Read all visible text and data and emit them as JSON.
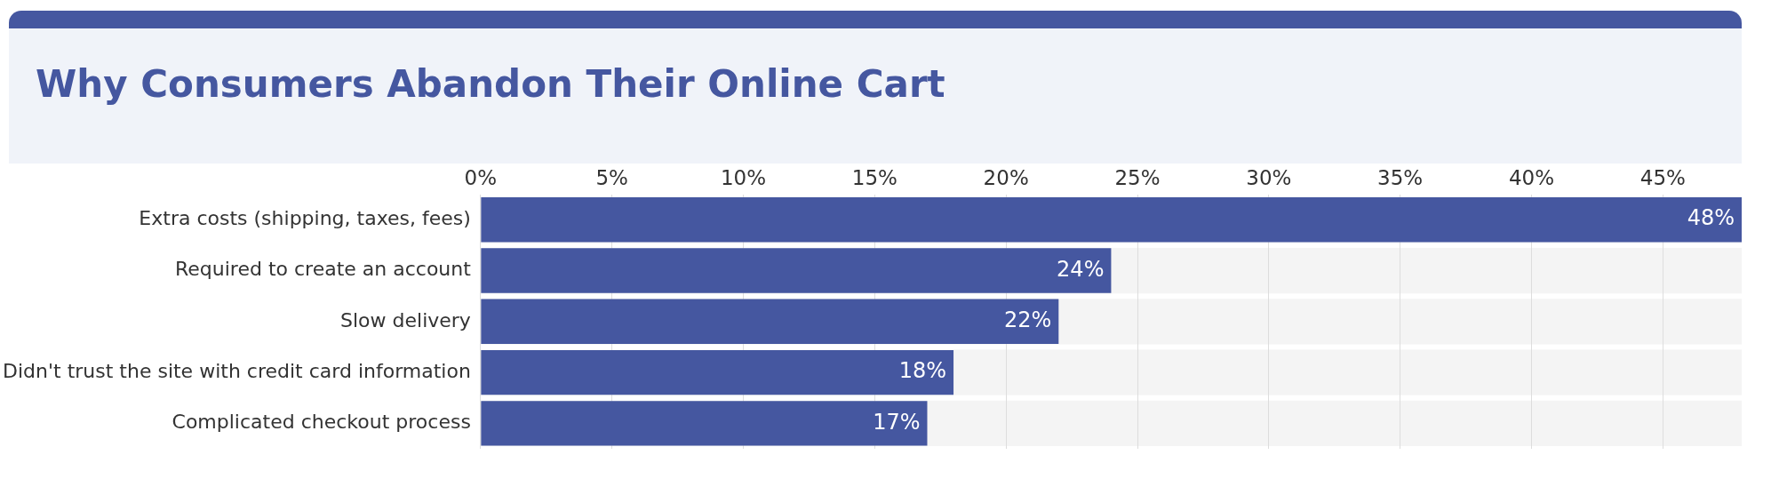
{
  "chart_data": {
    "type": "bar",
    "orientation": "horizontal",
    "title": "Why Consumers Abandon Their Online Cart",
    "categories": [
      "Extra costs (shipping, taxes, fees)",
      "Required to create an account",
      "Slow delivery",
      "Didn't trust the site with credit card information",
      "Complicated checkout process"
    ],
    "values": [
      48,
      24,
      22,
      18,
      17
    ],
    "color": "#4557a0",
    "value_labels": [
      "48%",
      "24%",
      "22%",
      "18%",
      "17%"
    ],
    "xlim": [
      0,
      48
    ],
    "xticks": [
      {
        "value": 0,
        "label": "0%"
      },
      {
        "value": 5,
        "label": "5%"
      },
      {
        "value": 10,
        "label": "10%"
      },
      {
        "value": 15,
        "label": "15%"
      },
      {
        "value": 20,
        "label": "20%"
      },
      {
        "value": 25,
        "label": "25%"
      },
      {
        "value": 30,
        "label": "30%"
      },
      {
        "value": 35,
        "label": "35%"
      },
      {
        "value": 40,
        "label": "40%"
      },
      {
        "value": 45,
        "label": "45%"
      }
    ],
    "grid": "x",
    "legend": false
  }
}
